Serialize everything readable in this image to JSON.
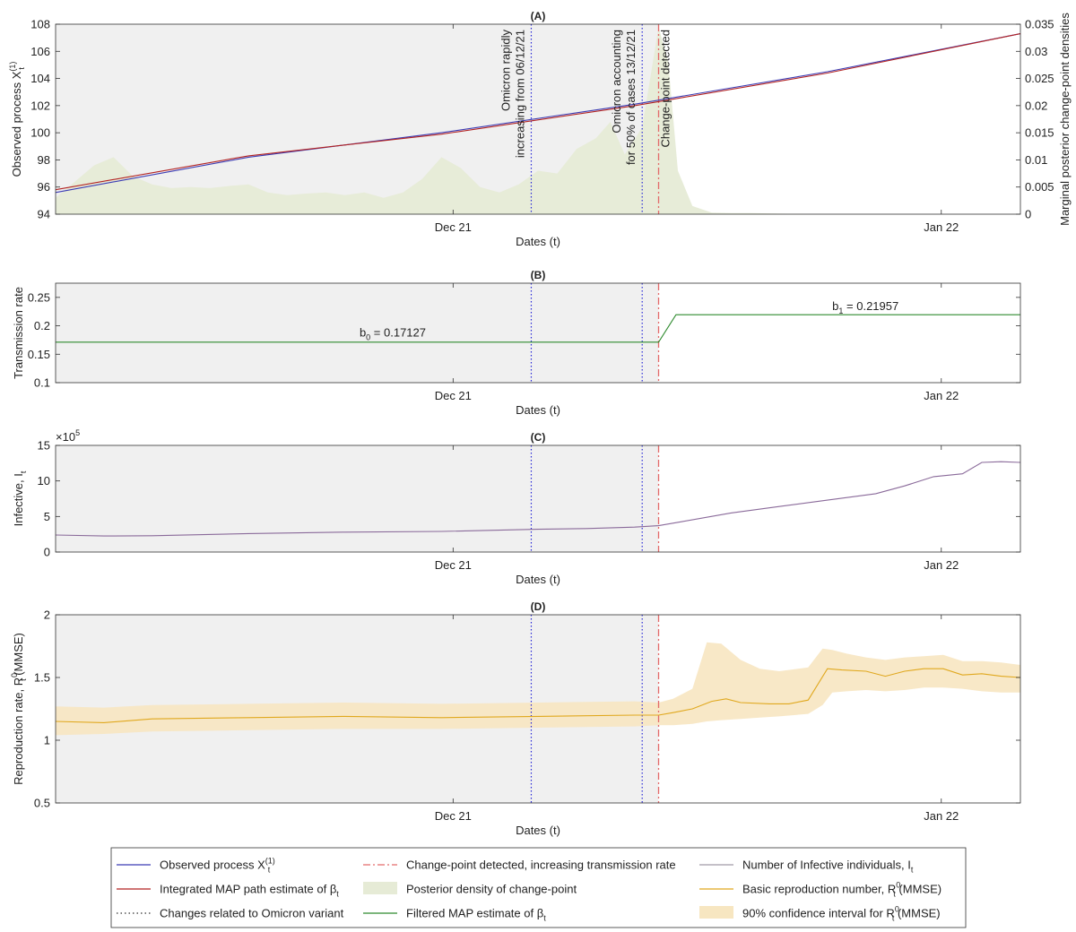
{
  "colors": {
    "observed": "#3b3bb3",
    "integrated_map": "#b22222",
    "omicron": "#2a2ad8",
    "changepoint": "#e36a6a",
    "filtered_map": "#2e8b2e",
    "posterior_fill": "#e6ebd6",
    "infective": "#8a6a9a",
    "r0": "#e0a81e",
    "ci_fill": "#f7e6c1",
    "pre_bg": "#f0f0f0",
    "annotation_blue": "#2b2bc0",
    "annotation_red": "#d62020"
  },
  "legend": {
    "items": [
      {
        "label": "Observed process X",
        "sup": "(1)",
        "sub": "t",
        "kind": "line",
        "color": "#3b3bb3"
      },
      {
        "label": "Change-point detected, increasing transmission rate",
        "kind": "dashdot",
        "color": "#e36a6a"
      },
      {
        "label": "Number of Infective individuals, I",
        "sub": "t",
        "kind": "line",
        "color": "#a09aa8"
      },
      {
        "label": "Integrated MAP path estimate of β",
        "sub": "t",
        "kind": "line",
        "color": "#b22222"
      },
      {
        "label": "Posterior density of change-point",
        "kind": "patch",
        "color": "#e6ebd6"
      },
      {
        "label": "Basic reproduction number, R",
        "sup": "0",
        "sub": "t",
        "suffix": " (MMSE)",
        "kind": "line",
        "color": "#e0a81e"
      },
      {
        "label": "Changes related to Omicron variant",
        "kind": "dotted",
        "color": "#333333"
      },
      {
        "label": "Filtered  MAP estimate of β",
        "sub": "t",
        "kind": "line",
        "color": "#2e8b2e"
      },
      {
        "label": "90% confidence interval for R",
        "sup": "0",
        "sub": "t",
        "suffix": " (MMSE)",
        "kind": "patch",
        "color": "#f7e6c1"
      }
    ]
  },
  "chart_data": [
    {
      "type": "line",
      "title": "(A)",
      "xlabel": "Dates (t)",
      "ylabel": "Observed process X",
      "ylabel_sup": "(1)",
      "ylabel_sub": "t",
      "ylabel_right": "Marginal posterior change-point densities",
      "x_domain": [
        0,
        100
      ],
      "xticks": [
        {
          "x": 41.2,
          "label": "Dec 21"
        },
        {
          "x": 91.8,
          "label": "Jan 22"
        }
      ],
      "ylim": [
        94,
        108
      ],
      "yticks": [
        "94",
        "96",
        "98",
        "100",
        "102",
        "104",
        "106",
        "108"
      ],
      "ylim_right": [
        0,
        0.035
      ],
      "yticks_right": [
        "0",
        "0.005",
        "0.01",
        "0.015",
        "0.02",
        "0.025",
        "0.03",
        "0.035"
      ],
      "shade_until": 62.5,
      "omicron_lines": [
        49.3,
        60.8
      ],
      "changepoint": 62.5,
      "annotations": [
        {
          "x": 49.3,
          "lines": [
            "Omicron rapidly",
            "increasing from 06/12/21"
          ],
          "color": "blue"
        },
        {
          "x": 60.8,
          "lines": [
            "Omicron accounting",
            "for 50% of cases 13/12/21"
          ],
          "color": "blue"
        },
        {
          "x": 62.5,
          "lines": [
            "Change-point detected"
          ],
          "color": "red"
        }
      ],
      "series": [
        {
          "name": "Observed process X(1)t",
          "x": [
            0,
            20,
            40,
            60,
            80,
            100
          ],
          "values": [
            95.6,
            98.2,
            100.0,
            102.1,
            104.5,
            107.3
          ]
        },
        {
          "name": "Integrated MAP path estimate of βt",
          "x": [
            0,
            20,
            40,
            60,
            80,
            100
          ],
          "values": [
            95.8,
            98.3,
            99.9,
            102.0,
            104.4,
            107.3
          ]
        }
      ],
      "posterior_density": {
        "x": [
          0,
          2,
          4,
          6,
          8,
          10,
          12,
          14,
          16,
          18,
          20,
          22,
          24,
          26,
          28,
          30,
          32,
          34,
          36,
          38,
          40,
          42,
          44,
          46,
          48,
          50,
          52,
          54,
          56,
          57.5,
          59,
          60.8,
          62.5,
          63.5,
          64.5,
          66,
          68,
          70,
          72,
          75,
          80,
          100
        ],
        "values": [
          0.003,
          0.006,
          0.009,
          0.0105,
          0.007,
          0.0055,
          0.0048,
          0.005,
          0.0048,
          0.0052,
          0.0055,
          0.004,
          0.0035,
          0.0038,
          0.004,
          0.0035,
          0.004,
          0.003,
          0.004,
          0.0065,
          0.0105,
          0.0085,
          0.005,
          0.004,
          0.0055,
          0.008,
          0.0075,
          0.012,
          0.014,
          0.017,
          0.011,
          0.016,
          0.0345,
          0.028,
          0.008,
          0.0015,
          0.0003,
          0.0002,
          0.0002,
          0.0001,
          0,
          0
        ]
      }
    },
    {
      "type": "line",
      "title": "(B)",
      "xlabel": "Dates (t)",
      "ylabel": "Transmission rate",
      "x_domain": [
        0,
        100
      ],
      "xticks": [
        {
          "x": 41.2,
          "label": "Dec 21"
        },
        {
          "x": 91.8,
          "label": "Jan 22"
        }
      ],
      "ylim": [
        0.1,
        0.275
      ],
      "yticks": [
        {
          "v": 0.1,
          "label": "0.1"
        },
        {
          "v": 0.15,
          "label": "0.15"
        },
        {
          "v": 0.2,
          "label": "0.2"
        },
        {
          "v": 0.25,
          "label": "0.25"
        }
      ],
      "shade_until": 62.5,
      "omicron_lines": [
        49.3,
        60.8
      ],
      "changepoint": 62.5,
      "series": [
        {
          "name": "Filtered MAP estimate of βt",
          "x": [
            0,
            62.5,
            64.3,
            100
          ],
          "values": [
            0.17127,
            0.17127,
            0.21957,
            0.21957
          ]
        }
      ],
      "labels": [
        {
          "x": 31.5,
          "y": 0.181,
          "main": "b",
          "sub": "0",
          "tail": " = 0.17127"
        },
        {
          "x": 80.5,
          "y": 0.228,
          "main": "b",
          "sub": "1",
          "tail": " = 0.21957"
        }
      ]
    },
    {
      "type": "line",
      "title": "(C)",
      "xlabel": "Dates (t)",
      "ylabel": "Infective, I",
      "ylabel_sub": "t",
      "exponent_label": "×10",
      "exponent_sup": "5",
      "x_domain": [
        0,
        100
      ],
      "xticks": [
        {
          "x": 41.2,
          "label": "Dec 21"
        },
        {
          "x": 91.8,
          "label": "Jan 22"
        }
      ],
      "ylim": [
        0,
        15
      ],
      "yticks": [
        {
          "v": 0,
          "label": "0"
        },
        {
          "v": 5,
          "label": "5"
        },
        {
          "v": 10,
          "label": "10"
        },
        {
          "v": 15,
          "label": "15"
        }
      ],
      "shade_until": 62.5,
      "omicron_lines": [
        49.3,
        60.8
      ],
      "changepoint": 62.5,
      "series": [
        {
          "name": "Number of Infective individuals, It",
          "x": [
            0,
            5,
            10,
            20,
            30,
            40,
            50,
            55,
            60,
            62.5,
            65,
            70,
            75,
            80,
            85,
            88,
            91,
            94,
            96,
            98,
            100
          ],
          "values": [
            2.4,
            2.25,
            2.3,
            2.6,
            2.8,
            2.9,
            3.2,
            3.3,
            3.5,
            3.7,
            4.3,
            5.5,
            6.4,
            7.3,
            8.2,
            9.3,
            10.6,
            11.0,
            12.6,
            12.7,
            12.6
          ]
        }
      ]
    },
    {
      "type": "area",
      "title": "(D)",
      "xlabel": "Dates (t)",
      "ylabel": "Reproduction rate, R",
      "ylabel_sup": "0",
      "ylabel_sub": "t",
      "ylabel_suffix": " (MMSE)",
      "x_domain": [
        0,
        100
      ],
      "xticks": [
        {
          "x": 41.2,
          "label": "Dec 21"
        },
        {
          "x": 91.8,
          "label": "Jan 22"
        }
      ],
      "ylim": [
        0.5,
        2
      ],
      "yticks": [
        {
          "v": 0.5,
          "label": "0.5"
        },
        {
          "v": 1,
          "label": "1"
        },
        {
          "v": 1.5,
          "label": "1.5"
        },
        {
          "v": 2,
          "label": "2"
        }
      ],
      "shade_until": 62.5,
      "omicron_lines": [
        49.3,
        60.8
      ],
      "changepoint": 62.5,
      "series": [
        {
          "name": "Basic reproduction number, R0t (MMSE)",
          "x": [
            0,
            5,
            10,
            20,
            30,
            40,
            50,
            60,
            62.5,
            64,
            66,
            68,
            69.5,
            71,
            74,
            76,
            78,
            80,
            81.5,
            84,
            86,
            88,
            90,
            92,
            94,
            96,
            98,
            100
          ],
          "values": [
            1.15,
            1.14,
            1.17,
            1.18,
            1.19,
            1.18,
            1.19,
            1.2,
            1.2,
            1.22,
            1.25,
            1.31,
            1.33,
            1.3,
            1.29,
            1.29,
            1.32,
            1.57,
            1.56,
            1.55,
            1.51,
            1.55,
            1.57,
            1.57,
            1.52,
            1.53,
            1.51,
            1.5
          ]
        }
      ],
      "band": {
        "x": [
          0,
          5,
          10,
          20,
          30,
          40,
          50,
          60,
          62.5,
          64,
          66,
          67.5,
          69,
          71,
          73,
          75,
          78,
          79.5,
          80.5,
          82,
          84,
          86,
          88,
          90,
          92,
          94,
          96,
          98,
          100
        ],
        "lower": [
          1.04,
          1.05,
          1.07,
          1.08,
          1.09,
          1.09,
          1.1,
          1.11,
          1.12,
          1.12,
          1.13,
          1.15,
          1.16,
          1.17,
          1.18,
          1.19,
          1.21,
          1.28,
          1.38,
          1.39,
          1.4,
          1.39,
          1.4,
          1.42,
          1.42,
          1.41,
          1.39,
          1.38,
          1.38
        ],
        "upper": [
          1.27,
          1.26,
          1.28,
          1.29,
          1.3,
          1.29,
          1.3,
          1.31,
          1.3,
          1.33,
          1.41,
          1.78,
          1.77,
          1.64,
          1.57,
          1.55,
          1.58,
          1.73,
          1.72,
          1.69,
          1.66,
          1.64,
          1.66,
          1.67,
          1.68,
          1.63,
          1.63,
          1.62,
          1.6
        ]
      }
    }
  ]
}
